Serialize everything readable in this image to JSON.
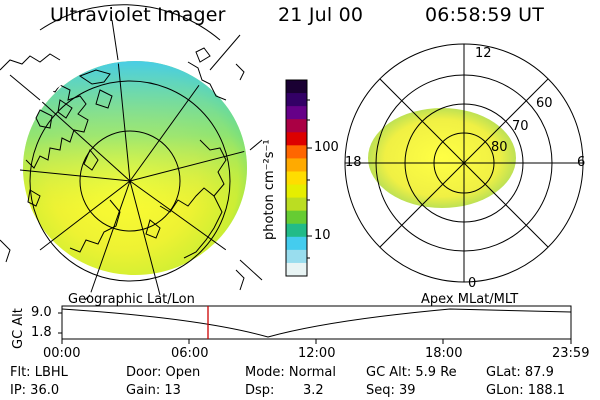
{
  "header": {
    "title": "Ultraviolet Imager",
    "date": "21 Jul 00",
    "time": "06:58:59 UT"
  },
  "colorbar": {
    "label": "photon cm⁻²s⁻¹",
    "ticks": [
      "100",
      "10"
    ],
    "colors": [
      "#1a0033",
      "#330066",
      "#660088",
      "#aa0044",
      "#dd0000",
      "#ff6600",
      "#ffaa00",
      "#ffdd00",
      "#e6ee00",
      "#bbdd22",
      "#66cc33",
      "#22bb88",
      "#44ccee",
      "#99ddee",
      "#e8f4f4"
    ]
  },
  "polar_plot": {
    "mlt_labels": {
      "top": "12",
      "left": "18",
      "right": "6",
      "bottom": "0"
    },
    "lat_labels": [
      "60",
      "70",
      "80"
    ]
  },
  "timeline": {
    "left_label": "Geographic Lat/Lon",
    "right_label": "Apex MLat/MLT",
    "axis_title": "GC Alt",
    "y_max": "9.0",
    "y_min": "1.8",
    "x_ticks": [
      "00:00",
      "06:00",
      "12:00",
      "18:00",
      "23:59"
    ],
    "marker_color": "#cc0000"
  },
  "info": {
    "flt": "Flt: LBHL",
    "ip": "IP: 36.0",
    "door": "Door: Open",
    "gain": "Gain: 13",
    "mode": "Mode: Normal",
    "dsp_label": "Dsp:",
    "dsp_value": "3.2",
    "gc_alt": "GC Alt: 5.9 Re",
    "seq": "Seq: 39",
    "glat": "GLat:  87.9",
    "glon": "GLon: 188.1"
  }
}
